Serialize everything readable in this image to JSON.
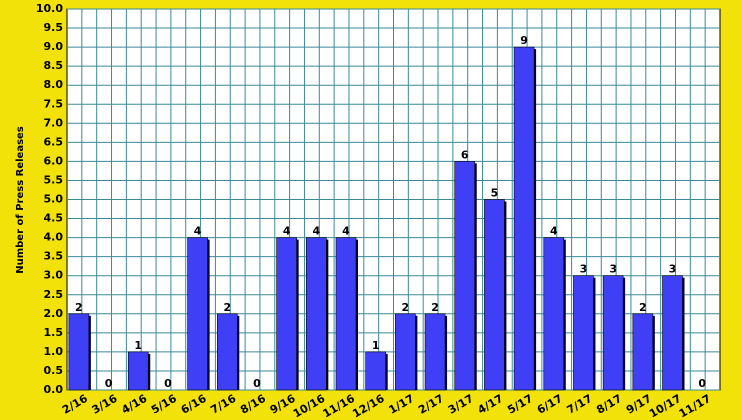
{
  "chart_data": {
    "type": "bar",
    "y_label": "Number of Press Releases",
    "categories": [
      "2/16",
      "3/16",
      "4/16",
      "5/16",
      "6/16",
      "7/16",
      "8/16",
      "9/16",
      "10/16",
      "11/16",
      "12/16",
      "1/17",
      "2/17",
      "3/17",
      "4/17",
      "5/17",
      "6/17",
      "7/17",
      "8/17",
      "9/17",
      "10/17",
      "11/17"
    ],
    "values": [
      2,
      0,
      1,
      0,
      4,
      2,
      0,
      4,
      4,
      4,
      1,
      2,
      2,
      6,
      5,
      9,
      4,
      3,
      3,
      2,
      3,
      0
    ],
    "color": "#3f3ff5",
    "ylim": [
      0,
      10
    ],
    "yticks": [
      {
        "value": 0,
        "label": "0.0"
      },
      0.5,
      {
        "value": 1,
        "label": "1.0"
      },
      1.5,
      {
        "value": 2,
        "label": "2.0"
      },
      2.5,
      {
        "value": 3,
        "label": "3.0"
      },
      3.5,
      {
        "value": 4,
        "label": "4.0"
      },
      4.5,
      {
        "value": 5,
        "label": "5.0"
      },
      5.5,
      {
        "value": 6,
        "label": "6.0"
      },
      6.5,
      {
        "value": 7,
        "label": "7.0"
      },
      7.5,
      {
        "value": 8,
        "label": "8.0"
      },
      8.5,
      {
        "value": 9,
        "label": "9.0"
      },
      9.5,
      {
        "value": 10,
        "label": "10.0"
      }
    ],
    "grid": true
  }
}
